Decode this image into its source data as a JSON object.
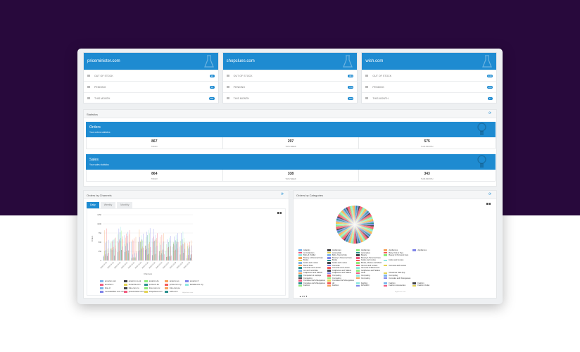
{
  "colors": {
    "accent": "#1e8bd1",
    "background_top": "#28093c",
    "frame": "#eef0f2"
  },
  "site_cards": [
    {
      "title": "priceminister.com",
      "rows": [
        {
          "label": "OUT OF STOCK",
          "value": "13"
        },
        {
          "label": "PENDING",
          "value": "10"
        },
        {
          "label": "THIS MONTH",
          "value": "602"
        }
      ]
    },
    {
      "title": "shopclues.com",
      "rows": [
        {
          "label": "OUT OF STOCK",
          "value": "484"
        },
        {
          "label": "PENDING",
          "value": "749"
        },
        {
          "label": "THIS MONTH",
          "value": "930"
        }
      ]
    },
    {
      "title": "wish.com",
      "rows": [
        {
          "label": "OUT OF STOCK",
          "value": "348"
        },
        {
          "label": "PENDING",
          "value": "168"
        },
        {
          "label": "THIS MONTH",
          "value": "17"
        }
      ]
    }
  ],
  "statistics": {
    "title": "Statistics",
    "blocks": [
      {
        "title": "Orders",
        "subtitle": "Your orders statistics",
        "cells": [
          {
            "value": "867",
            "label": "Today"
          },
          {
            "value": "297",
            "label": "This week"
          },
          {
            "value": "575",
            "label": "This month"
          }
        ]
      },
      {
        "title": "Sales",
        "subtitle": "Your sales statistics",
        "cells": [
          {
            "value": "864",
            "label": "Today"
          },
          {
            "value": "338",
            "label": "This week"
          },
          {
            "value": "343",
            "label": "This month"
          }
        ]
      }
    ]
  },
  "channels": {
    "title": "Orders by Channels",
    "tabs": [
      "Daily",
      "Weekly",
      "Monthly"
    ],
    "active_tab": 0,
    "credit": "Highcharts.com",
    "legend": [
      {
        "name": "amazon.com",
        "color": "#7cb5ec"
      },
      {
        "name": "amazon.co.uk",
        "color": "#434348"
      },
      {
        "name": "amazon.de",
        "color": "#90ed7d"
      },
      {
        "name": "amazon.es",
        "color": "#f7a35c"
      },
      {
        "name": "amazon.fr",
        "color": "#8085e9"
      },
      {
        "name": "amazon.it",
        "color": "#f15c80"
      },
      {
        "name": "bonanza.com",
        "color": "#e4d354"
      },
      {
        "name": "jumia.co.ke",
        "color": "#2b908f"
      },
      {
        "name": "jumia.com.ng",
        "color": "#f45b5b"
      },
      {
        "name": "lazada.com.my",
        "color": "#91e8e1"
      },
      {
        "name": "linio.cl",
        "color": "#7cb5ec"
      },
      {
        "name": "linio.com.co",
        "color": "#434348"
      },
      {
        "name": "linio.com.mx",
        "color": "#90ed7d"
      },
      {
        "name": "linio.com.pe",
        "color": "#f7a35c"
      },
      {
        "name": "",
        "color": "#ffffff"
      },
      {
        "name": "mercadolibre.com.mx",
        "color": "#8085e9"
      },
      {
        "name": "priceminister.com",
        "color": "#f15c80"
      },
      {
        "name": "shopclues.com",
        "color": "#e4d354"
      },
      {
        "name": "wish.com",
        "color": "#2b908f"
      }
    ]
  },
  "chart_data": {
    "type": "bar",
    "title": "",
    "xlabel": "Channels",
    "ylabel": "Orders",
    "ylim": [
      0,
      1250
    ],
    "yticks": [
      "0",
      "250",
      "500",
      "750",
      "1000",
      "1250"
    ],
    "grid": true,
    "legend_position": "bottom",
    "categories": [
      "2020-10-18",
      "2020-10-19",
      "2020-10-20",
      "2020-10-21",
      "2020-10-22",
      "2020-10-23",
      "2020-10-24",
      "2020-10-25",
      "2020-10-26",
      "2020-10-27",
      "2020-10-28",
      "2020-10-29",
      "2020-10-30"
    ],
    "series": [
      {
        "name": "amazon.com",
        "values": [
          420,
          990,
          870,
          930,
          590,
          620,
          540,
          920,
          180,
          290,
          830,
          650,
          200
        ]
      },
      {
        "name": "amazon.co.uk",
        "values": [
          150,
          380,
          600,
          450,
          100,
          660,
          450,
          340,
          450,
          140,
          560,
          470,
          120
        ]
      },
      {
        "name": "amazon.de",
        "values": [
          520,
          840,
          960,
          520,
          200,
          850,
          960,
          630,
          520,
          980,
          860,
          750,
          460
        ]
      },
      {
        "name": "amazon.es",
        "values": [
          960,
          840,
          940,
          960,
          730,
          930,
          930,
          920,
          930,
          420,
          720,
          850,
          760
        ]
      },
      {
        "name": "amazon.fr",
        "values": [
          770,
          380,
          980,
          950,
          300,
          940,
          970,
          920,
          910,
          960,
          900,
          870,
          840
        ]
      }
    ]
  },
  "categories": {
    "title": "Orders by Categories",
    "credit": "Highcharts.com",
    "pager": "1/3",
    "legend": [
      {
        "name": "Adaptés",
        "color": "#7cb5ec"
      },
      {
        "name": "Appliances",
        "color": "#434348"
      },
      {
        "name": "Appliances",
        "color": "#90ed7d"
      },
      {
        "name": "Appliances",
        "color": "#f7a35c"
      },
      {
        "name": "Appliances",
        "color": "#8085e9"
      },
      {
        "name": "Art Collection",
        "color": "#f15c80"
      },
      {
        "name": "Automobile",
        "color": "#e4d354"
      },
      {
        "name": "Automotive",
        "color": "#2b908f"
      },
      {
        "name": "Baby, Kids & Toys",
        "color": "#f45b5b"
      },
      {
        "name": "",
        "color": "#ffffff"
      },
      {
        "name": "Baby & Toddler",
        "color": "#91e8e1"
      },
      {
        "name": "Baby, Toys & Kids",
        "color": "#7cb5ec"
      },
      {
        "name": "Beauty",
        "color": "#434348"
      },
      {
        "name": "Beauty & Personal Care",
        "color": "#90ed7d"
      },
      {
        "name": "",
        "color": "#ffffff"
      },
      {
        "name": "Beauty & Personal Care",
        "color": "#f7a35c"
      },
      {
        "name": "Beauty & Personal Care",
        "color": "#8085e9"
      },
      {
        "name": "Beauty & Personal Care",
        "color": "#f15c80"
      },
      {
        "name": "",
        "color": "#ffffff"
      },
      {
        "name": "",
        "color": "#ffffff"
      },
      {
        "name": "Books",
        "color": "#e4d354"
      },
      {
        "name": "Books",
        "color": "#2b908f"
      },
      {
        "name": "books and movies",
        "color": "#f45b5b"
      },
      {
        "name": "books and movies",
        "color": "#91e8e1"
      },
      {
        "name": "",
        "color": "#ffffff"
      },
      {
        "name": "books and movies",
        "color": "#7cb5ec"
      },
      {
        "name": "books and movies",
        "color": "#434348"
      },
      {
        "name": "Books, Movies and Music",
        "color": "#90ed7d"
      },
      {
        "name": "",
        "color": "#ffffff"
      },
      {
        "name": "",
        "color": "#ffffff"
      },
      {
        "name": "Brand Store",
        "color": "#f7a35c"
      },
      {
        "name": "Cameras",
        "color": "#8085e9"
      },
      {
        "name": "Camera and Lenses",
        "color": "#f15c80"
      },
      {
        "name": "Cameras and Lenses",
        "color": "#e4d354"
      },
      {
        "name": "",
        "color": "#ffffff"
      },
      {
        "name": "Cameras and Lenses",
        "color": "#2b908f"
      },
      {
        "name": "Cameras and Lenses",
        "color": "#f45b5b"
      },
      {
        "name": "Cameras & Electronics",
        "color": "#91e8e1"
      },
      {
        "name": "",
        "color": "#ffffff"
      },
      {
        "name": "",
        "color": "#ffffff"
      },
      {
        "name": "car and motorbike",
        "color": "#7cb5ec"
      },
      {
        "name": "Cellphones and Tablets",
        "color": "#434348"
      },
      {
        "name": "Cellphones and Tablets",
        "color": "#90ed7d"
      },
      {
        "name": "",
        "color": "#ffffff"
      },
      {
        "name": "",
        "color": "#ffffff"
      },
      {
        "name": "Cellphones and Tablets",
        "color": "#f7a35c"
      },
      {
        "name": "Cellphones and Tablets",
        "color": "#8085e9"
      },
      {
        "name": "Child",
        "color": "#f15c80"
      },
      {
        "name": "Clearance Sale App",
        "color": "#e4d354"
      },
      {
        "name": "",
        "color": "#ffffff"
      },
      {
        "name": "Computers & Laptops",
        "color": "#2b908f"
      },
      {
        "name": "Computing",
        "color": "#f45b5b"
      },
      {
        "name": "Computing",
        "color": "#91e8e1"
      },
      {
        "name": "Computing",
        "color": "#7cb5ec"
      },
      {
        "name": "",
        "color": "#ffffff"
      },
      {
        "name": "Computing",
        "color": "#434348"
      },
      {
        "name": "Computing",
        "color": "#90ed7d"
      },
      {
        "name": "Computing",
        "color": "#f7a35c"
      },
      {
        "name": "Consoles and Videogames",
        "color": "#8085e9"
      },
      {
        "name": "",
        "color": "#ffffff"
      },
      {
        "name": "Consoles and Videogames",
        "color": "#f15c80"
      },
      {
        "name": "Consoles and Videogames",
        "color": "#e4d354"
      },
      {
        "name": "",
        "color": "#ffffff"
      },
      {
        "name": "",
        "color": "#ffffff"
      },
      {
        "name": "",
        "color": "#ffffff"
      },
      {
        "name": "Consoles and Videogames",
        "color": "#2b908f"
      },
      {
        "name": "diy",
        "color": "#f45b5b"
      },
      {
        "name": "Fashion",
        "color": "#91e8e1"
      },
      {
        "name": "Fashion",
        "color": "#7cb5ec"
      },
      {
        "name": "Fashion",
        "color": "#434348"
      },
      {
        "name": "Fashion",
        "color": "#90ed7d"
      },
      {
        "name": "Fashion",
        "color": "#f7a35c"
      },
      {
        "name": "FASHION",
        "color": "#8085e9"
      },
      {
        "name": "Fashion Accessories",
        "color": "#f15c80"
      },
      {
        "name": "Fashion Outlet",
        "color": "#e4d354"
      }
    ]
  }
}
